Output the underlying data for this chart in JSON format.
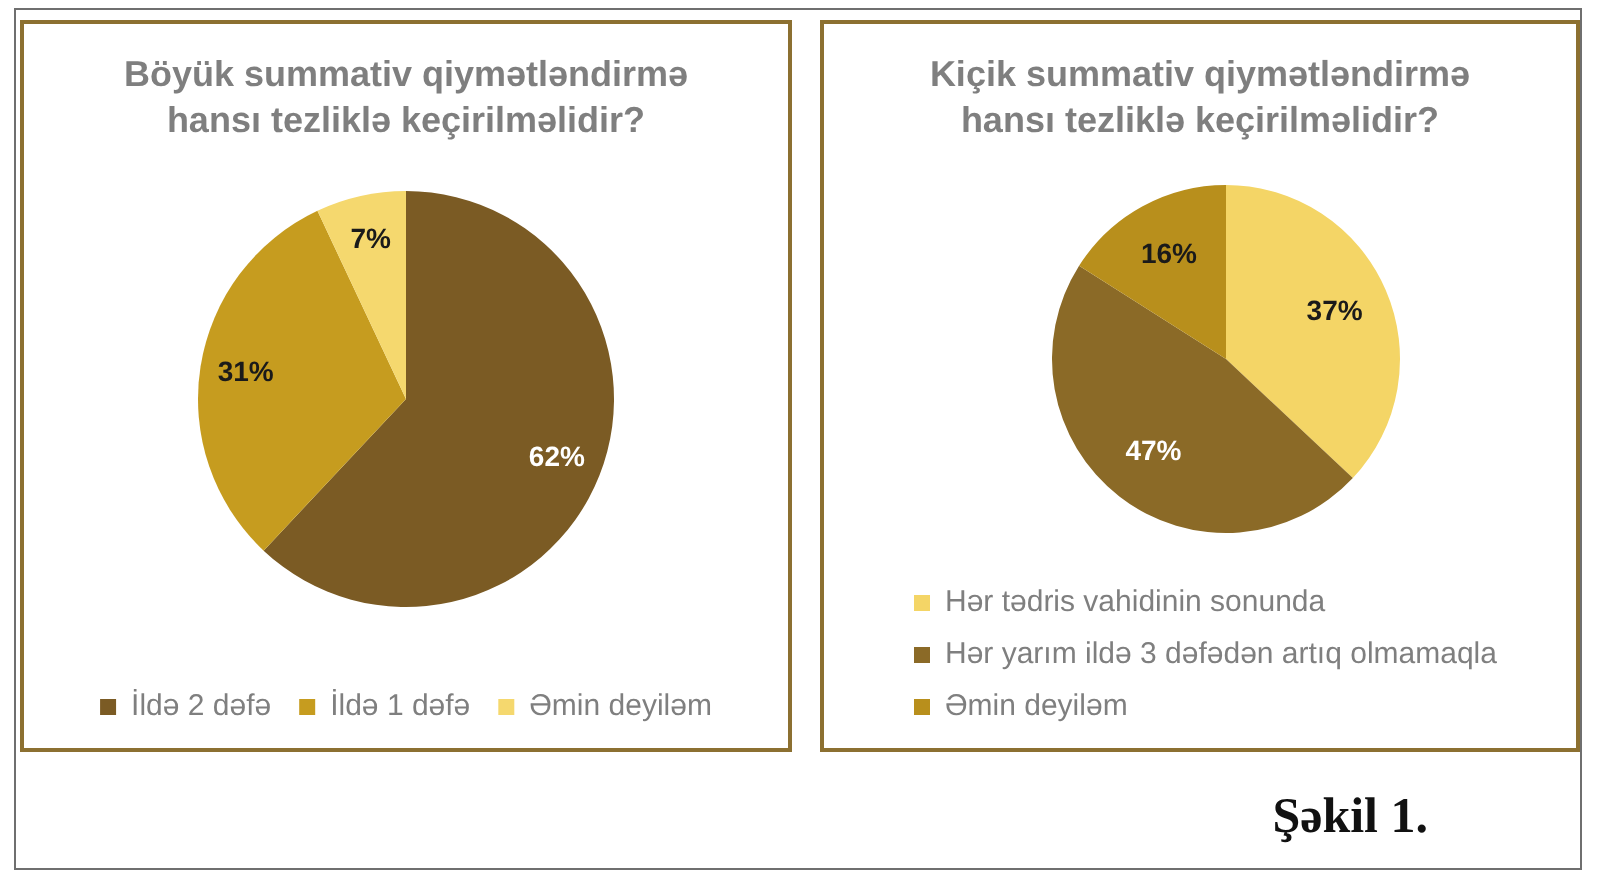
{
  "chart_data": [
    {
      "type": "pie",
      "title": "Böyük summativ qiymətləndirmə hansı tezliklə keçirilməlidir?",
      "categories": [
        "İldə 2 dəfə",
        "İldə 1 dəfə",
        "Əmin deyiləm"
      ],
      "values": [
        62,
        31,
        7
      ],
      "colors": [
        "#7b5b24",
        "#c69c1f",
        "#f5d86e"
      ],
      "value_labels": [
        "62%",
        "31%",
        "7%"
      ],
      "legend": "bottom"
    },
    {
      "type": "pie",
      "title": "Kiçik summativ qiymətləndirmə hansı tezliklə keçirilməlidir?",
      "categories": [
        "Hər tədris vahidinin sonunda",
        "Hər yarım ildə 3 dəfədən artıq olmamaqla",
        "Əmin deyiləm"
      ],
      "values": [
        37,
        47,
        16
      ],
      "colors": [
        "#f4d566",
        "#8b6a27",
        "#b88f1c"
      ],
      "value_labels": [
        "37%",
        "47%",
        "16%"
      ],
      "legend": "bottom",
      "annotations": [
        "Şəkil 1."
      ]
    }
  ]
}
